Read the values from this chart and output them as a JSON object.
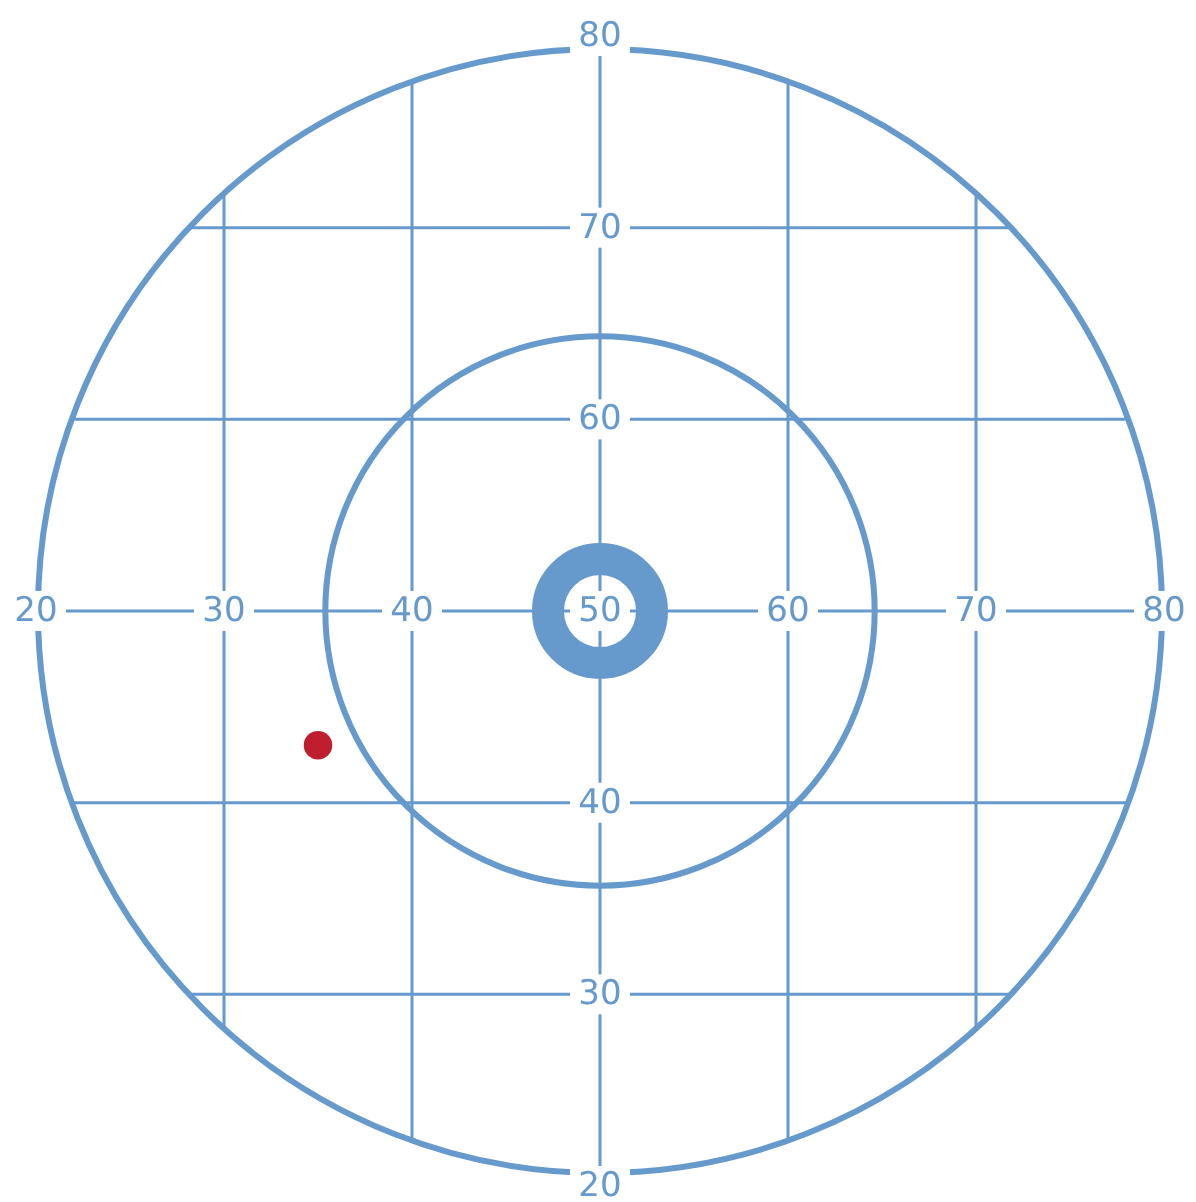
{
  "chart_data": {
    "type": "scatter",
    "x": [
      35
    ],
    "values": [
      43
    ],
    "color": "#be1e2d",
    "xlim": [
      20,
      80
    ],
    "xticks": [
      20,
      30,
      40,
      50,
      60,
      70,
      80
    ],
    "ylim": [
      20,
      80
    ],
    "yticks": [
      20,
      30,
      40,
      {
        "value": 50,
        "label": null
      },
      60,
      70,
      80
    ],
    "grid": true,
    "marker": "circle"
  }
}
